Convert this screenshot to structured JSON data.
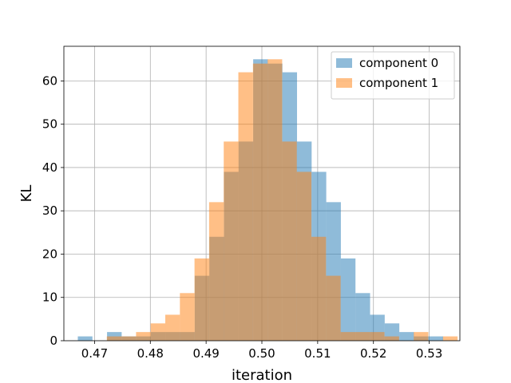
{
  "chart_data": {
    "type": "histogram",
    "xlabel": "iteration",
    "ylabel": "KL",
    "xlim": [
      0.4645,
      0.5355
    ],
    "ylim": [
      0,
      68
    ],
    "x_ticks": [
      0.47,
      0.48,
      0.49,
      0.5,
      0.51,
      0.52,
      0.53
    ],
    "x_tick_labels": [
      "0.47",
      "0.48",
      "0.49",
      "0.50",
      "0.51",
      "0.52",
      "0.53"
    ],
    "y_ticks": [
      0,
      10,
      20,
      30,
      40,
      50,
      60
    ],
    "y_tick_labels": [
      "0",
      "10",
      "20",
      "30",
      "40",
      "50",
      "60"
    ],
    "grid": true,
    "legend_position": "top-right",
    "series": [
      {
        "name": "component 0",
        "color": "#1f77b4",
        "alpha": 0.5,
        "bin_start": 0.467,
        "bin_width": 0.00262,
        "counts": [
          1,
          0,
          2,
          1,
          1,
          2,
          2,
          2,
          15,
          24,
          39,
          46,
          65,
          64,
          62,
          46,
          39,
          32,
          19,
          11,
          6,
          4,
          2,
          1,
          1
        ]
      },
      {
        "name": "component 1",
        "color": "#ff7f0e",
        "alpha": 0.5,
        "bin_start": 0.4722,
        "bin_width": 0.00262,
        "counts": [
          1,
          1,
          2,
          4,
          6,
          11,
          19,
          32,
          46,
          62,
          64,
          65,
          46,
          39,
          24,
          15,
          2,
          2,
          2,
          1,
          0,
          2,
          0,
          1
        ]
      }
    ]
  }
}
